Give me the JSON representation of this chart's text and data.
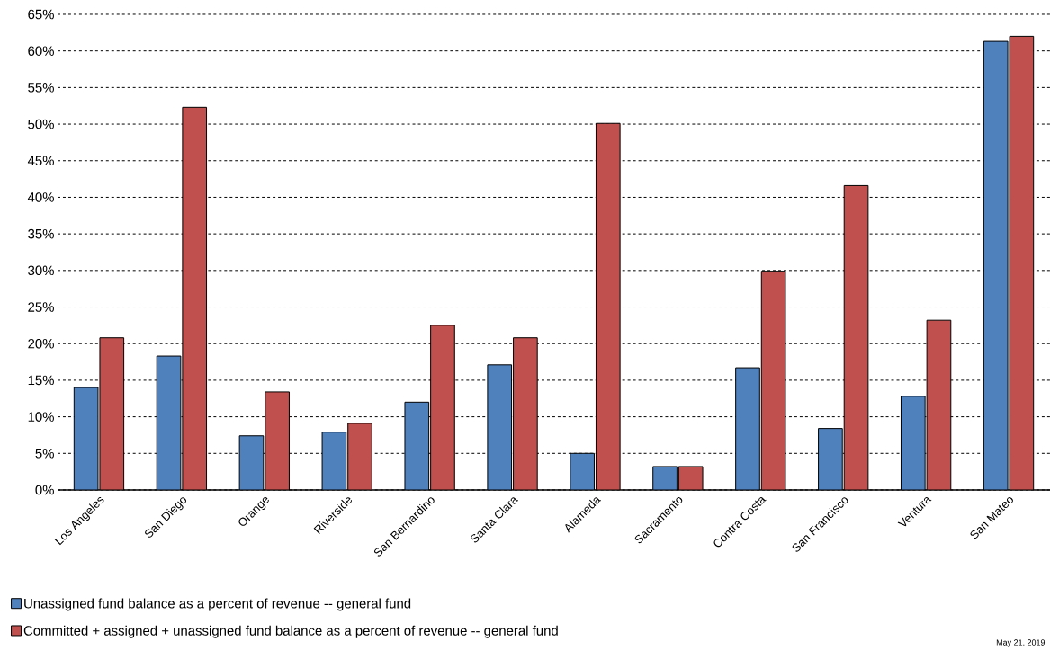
{
  "chart_data": {
    "type": "bar",
    "categories": [
      "Los Angeles",
      "San Diego",
      "Orange",
      "Riverside",
      "San Bernardino",
      "Santa Clara",
      "Alameda",
      "Sacramento",
      "Contra Costa",
      "San Francisco",
      "Ventura",
      "San Mateo"
    ],
    "series": [
      {
        "name": "Unassigned fund balance as a percent of revenue -- general fund",
        "color": "#4f81bd",
        "values": [
          14.0,
          18.3,
          7.4,
          7.9,
          12.0,
          17.1,
          5.0,
          3.2,
          16.7,
          8.4,
          12.8,
          61.3
        ]
      },
      {
        "name": "Committed + assigned + unassigned fund balance as a percent of revenue -- general fund",
        "color": "#c0504d",
        "values": [
          20.8,
          52.3,
          13.4,
          9.1,
          22.5,
          20.8,
          50.1,
          3.2,
          29.9,
          41.6,
          23.2,
          62.0
        ]
      }
    ],
    "ylim": [
      0,
      65
    ],
    "yticks": [
      {
        "value": 0,
        "label": "0%"
      },
      {
        "value": 5,
        "label": "5%"
      },
      {
        "value": 10,
        "label": "10%"
      },
      {
        "value": 15,
        "label": "15%"
      },
      {
        "value": 20,
        "label": "20%"
      },
      {
        "value": 25,
        "label": "25%"
      },
      {
        "value": 30,
        "label": "30%"
      },
      {
        "value": 35,
        "label": "35%"
      },
      {
        "value": 40,
        "label": "40%"
      },
      {
        "value": 45,
        "label": "45%"
      },
      {
        "value": 50,
        "label": "50%"
      },
      {
        "value": 55,
        "label": "55%"
      },
      {
        "value": 60,
        "label": "60%"
      },
      {
        "value": 65,
        "label": "65%"
      }
    ],
    "grid": "y",
    "legend": "bottom left",
    "annotations": [
      "May 21, 2019"
    ]
  }
}
